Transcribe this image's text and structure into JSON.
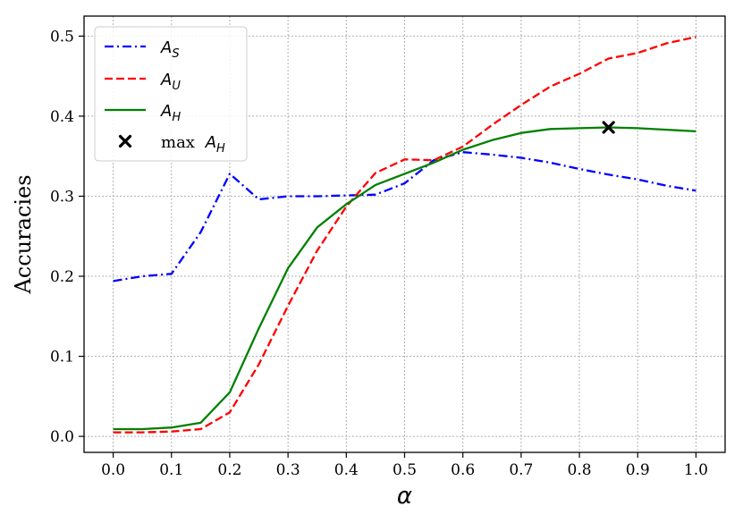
{
  "chart_data": {
    "type": "line",
    "xlabel": "α",
    "ylabel": "Accuracies",
    "xlim": [
      -0.05,
      1.05
    ],
    "ylim": [
      -0.02,
      0.525
    ],
    "xticks": [
      "0.0",
      "0.1",
      "0.2",
      "0.3",
      "0.4",
      "0.5",
      "0.6",
      "0.7",
      "0.8",
      "0.9",
      "1.0"
    ],
    "yticks": [
      "0.0",
      "0.1",
      "0.2",
      "0.3",
      "0.4",
      "0.5"
    ],
    "grid": true,
    "legend_position": "top-left",
    "x": [
      0.0,
      0.05,
      0.1,
      0.15,
      0.2,
      0.25,
      0.3,
      0.35,
      0.4,
      0.45,
      0.5,
      0.55,
      0.6,
      0.65,
      0.7,
      0.75,
      0.8,
      0.85,
      0.9,
      0.95,
      1.0
    ],
    "series": [
      {
        "name": "A_S",
        "legend": {
          "main": "A",
          "sub": "S"
        },
        "color": "#0000ff",
        "style": "dashdot",
        "values": [
          0.194,
          0.2,
          0.203,
          0.255,
          0.328,
          0.296,
          0.3,
          0.3,
          0.301,
          0.302,
          0.316,
          0.345,
          0.355,
          0.352,
          0.348,
          0.342,
          0.334,
          0.327,
          0.321,
          0.313,
          0.307
        ]
      },
      {
        "name": "A_U",
        "legend": {
          "main": "A",
          "sub": "U"
        },
        "color": "#ff0000",
        "style": "dashed",
        "values": [
          0.005,
          0.005,
          0.006,
          0.009,
          0.03,
          0.09,
          0.163,
          0.232,
          0.287,
          0.329,
          0.346,
          0.345,
          0.362,
          0.389,
          0.414,
          0.437,
          0.453,
          0.472,
          0.479,
          0.491,
          0.499
        ]
      },
      {
        "name": "A_H",
        "legend": {
          "main": "A",
          "sub": "H"
        },
        "color": "#008000",
        "style": "solid",
        "values": [
          0.009,
          0.009,
          0.011,
          0.017,
          0.055,
          0.135,
          0.21,
          0.261,
          0.29,
          0.314,
          0.328,
          0.342,
          0.358,
          0.37,
          0.379,
          0.384,
          0.385,
          0.386,
          0.385,
          0.383,
          0.381
        ]
      }
    ],
    "marker": {
      "legend": {
        "prefix": "max ",
        "main": "A",
        "sub": "H"
      },
      "x": 0.85,
      "y": 0.386,
      "symbol": "x",
      "color": "#000000"
    }
  }
}
